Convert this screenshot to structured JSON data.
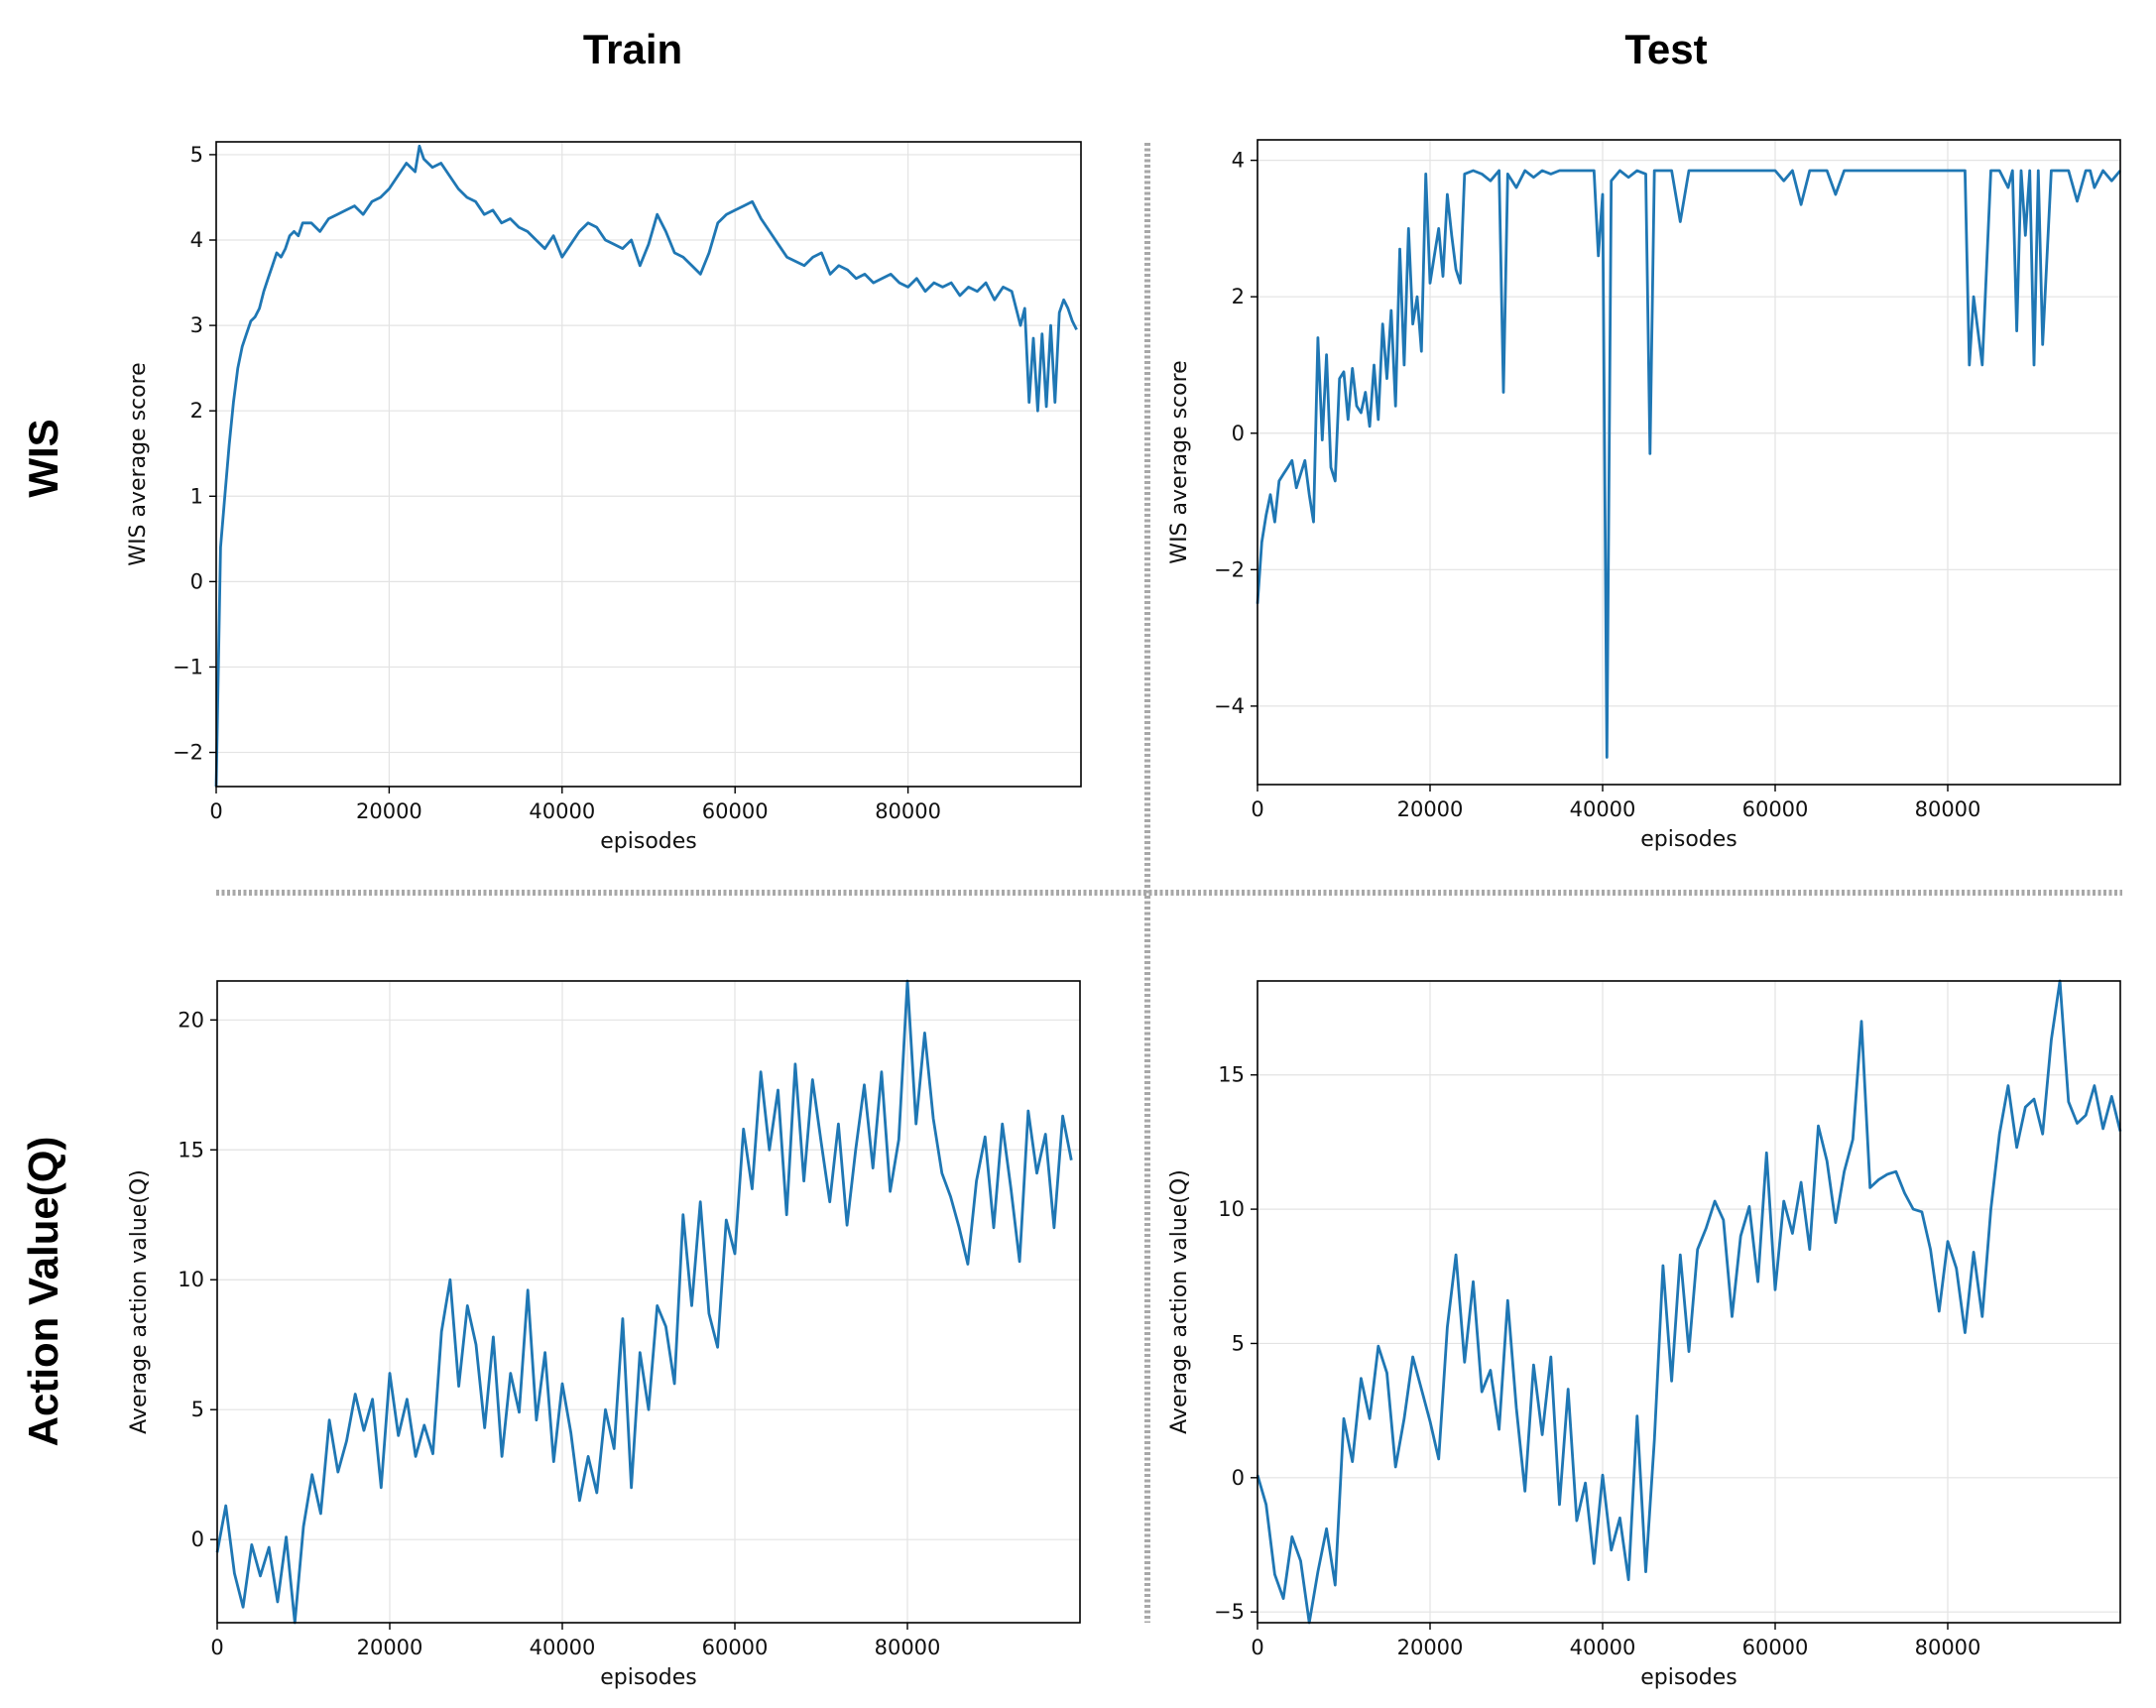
{
  "figure": {
    "column_titles": [
      "Train",
      "Test"
    ],
    "row_titles": [
      "WIS",
      "Action Value(Q)"
    ],
    "line_color": "#1f77b4",
    "divider_color": "#a8a8a8"
  },
  "chart_data": [
    {
      "type": "line",
      "id": "wis-train",
      "title": "",
      "xlabel": "episodes",
      "ylabel": "WIS average score",
      "xlim": [
        0,
        100000
      ],
      "ylim": [
        -2.4,
        5.15
      ],
      "xticks": [
        0,
        20000,
        40000,
        60000,
        80000
      ],
      "yticks": [
        -2,
        -1,
        0,
        1,
        2,
        3,
        4,
        5
      ],
      "grid": true,
      "series": [
        {
          "name": "WIS train",
          "x": [
            0,
            500,
            1000,
            1500,
            2000,
            2500,
            3000,
            3500,
            4000,
            4500,
            5000,
            5500,
            6000,
            6500,
            7000,
            7500,
            8000,
            8500,
            9000,
            9500,
            10000,
            11000,
            12000,
            13000,
            14000,
            15000,
            16000,
            17000,
            18000,
            19000,
            20000,
            21000,
            22000,
            23000,
            23500,
            24000,
            25000,
            26000,
            27000,
            28000,
            29000,
            30000,
            31000,
            32000,
            33000,
            34000,
            35000,
            36000,
            37000,
            38000,
            39000,
            40000,
            41000,
            42000,
            43000,
            44000,
            45000,
            46000,
            47000,
            48000,
            49000,
            50000,
            51000,
            52000,
            53000,
            54000,
            55000,
            56000,
            57000,
            58000,
            59000,
            60000,
            61000,
            62000,
            63000,
            64000,
            65000,
            66000,
            67000,
            68000,
            69000,
            70000,
            71000,
            72000,
            73000,
            74000,
            75000,
            76000,
            77000,
            78000,
            79000,
            80000,
            81000,
            82000,
            83000,
            84000,
            85000,
            86000,
            87000,
            88000,
            89000,
            90000,
            91000,
            92000,
            93000,
            93500,
            94000,
            94500,
            95000,
            95500,
            96000,
            96500,
            97000,
            97500,
            98000,
            98500,
            99000,
            99500
          ],
          "y": [
            -2.4,
            0.4,
            1.0,
            1.6,
            2.1,
            2.5,
            2.75,
            2.9,
            3.05,
            3.1,
            3.2,
            3.4,
            3.55,
            3.7,
            3.85,
            3.8,
            3.9,
            4.05,
            4.1,
            4.05,
            4.2,
            4.2,
            4.1,
            4.25,
            4.3,
            4.35,
            4.4,
            4.3,
            4.45,
            4.5,
            4.6,
            4.75,
            4.9,
            4.8,
            5.1,
            4.95,
            4.85,
            4.9,
            4.75,
            4.6,
            4.5,
            4.45,
            4.3,
            4.35,
            4.2,
            4.25,
            4.15,
            4.1,
            4.0,
            3.9,
            4.05,
            3.8,
            3.95,
            4.1,
            4.2,
            4.15,
            4.0,
            3.95,
            3.9,
            4.0,
            3.7,
            3.95,
            4.3,
            4.1,
            3.85,
            3.8,
            3.7,
            3.6,
            3.85,
            4.2,
            4.3,
            4.35,
            4.4,
            4.45,
            4.25,
            4.1,
            3.95,
            3.8,
            3.75,
            3.7,
            3.8,
            3.85,
            3.6,
            3.7,
            3.65,
            3.55,
            3.6,
            3.5,
            3.55,
            3.6,
            3.5,
            3.45,
            3.55,
            3.4,
            3.5,
            3.45,
            3.5,
            3.35,
            3.45,
            3.4,
            3.5,
            3.3,
            3.45,
            3.4,
            3.0,
            3.2,
            2.1,
            2.85,
            2.0,
            2.9,
            2.05,
            3.0,
            2.1,
            3.15,
            3.3,
            3.2,
            3.05,
            2.95
          ]
        }
      ]
    },
    {
      "type": "line",
      "id": "wis-test",
      "title": "",
      "xlabel": "episodes",
      "ylabel": "WIS average score",
      "xlim": [
        0,
        100000
      ],
      "ylim": [
        -5.15,
        4.3
      ],
      "xticks": [
        0,
        20000,
        40000,
        60000,
        80000
      ],
      "yticks": [
        -4,
        -2,
        0,
        2,
        4
      ],
      "grid": true,
      "series": [
        {
          "name": "WIS test",
          "x": [
            0,
            500,
            1000,
            1500,
            2000,
            2500,
            3000,
            3500,
            4000,
            4500,
            5000,
            5500,
            6000,
            6500,
            7000,
            7500,
            8000,
            8500,
            9000,
            9500,
            10000,
            10500,
            11000,
            11500,
            12000,
            12500,
            13000,
            13500,
            14000,
            14500,
            15000,
            15500,
            16000,
            16500,
            17000,
            17500,
            18000,
            18500,
            19000,
            19500,
            20000,
            20500,
            21000,
            21500,
            22000,
            22500,
            23000,
            23500,
            24000,
            25000,
            26000,
            27000,
            28000,
            28500,
            29000,
            30000,
            31000,
            32000,
            33000,
            34000,
            35000,
            36000,
            37000,
            38000,
            39000,
            39500,
            40000,
            40500,
            41000,
            42000,
            43000,
            44000,
            45000,
            45500,
            46000,
            47000,
            48000,
            49000,
            50000,
            52000,
            54000,
            56000,
            58000,
            60000,
            61000,
            62000,
            63000,
            64000,
            65000,
            66000,
            67000,
            68000,
            70000,
            72000,
            74000,
            76000,
            78000,
            80000,
            81000,
            82000,
            82500,
            83000,
            84000,
            85000,
            86000,
            87000,
            87500,
            88000,
            88500,
            89000,
            89500,
            90000,
            90500,
            91000,
            92000,
            93000,
            94000,
            95000,
            96000,
            96500,
            97000,
            98000,
            99000,
            100000
          ],
          "y": [
            -2.5,
            -1.6,
            -1.2,
            -0.9,
            -1.3,
            -0.7,
            -0.6,
            -0.5,
            -0.4,
            -0.8,
            -0.6,
            -0.4,
            -0.9,
            -1.3,
            1.4,
            -0.1,
            1.15,
            -0.5,
            -0.7,
            0.8,
            0.9,
            0.2,
            0.95,
            0.4,
            0.3,
            0.6,
            0.1,
            1.0,
            0.2,
            1.6,
            0.8,
            1.8,
            0.4,
            2.7,
            1.0,
            3.0,
            1.6,
            2.0,
            1.2,
            3.8,
            2.2,
            2.6,
            3.0,
            2.3,
            3.5,
            2.9,
            2.4,
            2.2,
            3.8,
            3.85,
            3.8,
            3.7,
            3.85,
            0.6,
            3.8,
            3.6,
            3.85,
            3.75,
            3.85,
            3.8,
            3.85,
            3.85,
            3.85,
            3.85,
            3.85,
            2.6,
            3.5,
            -4.75,
            3.7,
            3.85,
            3.75,
            3.85,
            3.8,
            -0.3,
            3.85,
            3.85,
            3.85,
            3.1,
            3.85,
            3.85,
            3.85,
            3.85,
            3.85,
            3.85,
            3.7,
            3.85,
            3.35,
            3.85,
            3.85,
            3.85,
            3.5,
            3.85,
            3.85,
            3.85,
            3.85,
            3.85,
            3.85,
            3.85,
            3.85,
            3.85,
            1.0,
            2.0,
            1.0,
            3.85,
            3.85,
            3.6,
            3.85,
            1.5,
            3.85,
            2.9,
            3.85,
            1.0,
            3.85,
            1.3,
            3.85,
            3.85,
            3.85,
            3.4,
            3.85,
            3.85,
            3.6,
            3.85,
            3.7,
            3.85
          ]
        }
      ]
    },
    {
      "type": "line",
      "id": "q-train",
      "title": "",
      "xlabel": "episodes",
      "ylabel": "Average action value(Q)",
      "xlim": [
        0,
        100000
      ],
      "ylim": [
        -3.2,
        21.5
      ],
      "xticks": [
        0,
        20000,
        40000,
        60000,
        80000
      ],
      "yticks": [
        0,
        5,
        10,
        15,
        20
      ],
      "grid": true,
      "series": [
        {
          "name": "Q train",
          "x": [
            0,
            1000,
            2000,
            3000,
            4000,
            5000,
            6000,
            7000,
            8000,
            9000,
            10000,
            11000,
            12000,
            13000,
            14000,
            15000,
            16000,
            17000,
            18000,
            19000,
            20000,
            21000,
            22000,
            23000,
            24000,
            25000,
            26000,
            27000,
            28000,
            29000,
            30000,
            31000,
            32000,
            33000,
            34000,
            35000,
            36000,
            37000,
            38000,
            39000,
            40000,
            41000,
            42000,
            43000,
            44000,
            45000,
            46000,
            47000,
            48000,
            49000,
            50000,
            51000,
            52000,
            53000,
            54000,
            55000,
            56000,
            57000,
            58000,
            59000,
            60000,
            61000,
            62000,
            63000,
            64000,
            65000,
            66000,
            67000,
            68000,
            69000,
            70000,
            71000,
            72000,
            73000,
            74000,
            75000,
            76000,
            77000,
            78000,
            79000,
            80000,
            81000,
            82000,
            83000,
            84000,
            85000,
            86000,
            87000,
            88000,
            89000,
            90000,
            91000,
            92000,
            93000,
            94000,
            95000,
            96000,
            97000,
            98000,
            99000
          ],
          "y": [
            -0.5,
            1.3,
            -1.3,
            -2.6,
            -0.2,
            -1.4,
            -0.3,
            -2.4,
            0.1,
            -3.2,
            0.5,
            2.5,
            1.0,
            4.6,
            2.6,
            3.8,
            5.6,
            4.2,
            5.4,
            2.0,
            6.4,
            4.0,
            5.4,
            3.2,
            4.4,
            3.3,
            8.0,
            10.0,
            5.9,
            9.0,
            7.5,
            4.3,
            7.8,
            3.2,
            6.4,
            4.9,
            9.6,
            4.6,
            7.2,
            3.0,
            6.0,
            4.1,
            1.5,
            3.2,
            1.8,
            5.0,
            3.5,
            8.5,
            2.0,
            7.2,
            5.0,
            9.0,
            8.2,
            6.0,
            12.5,
            9.0,
            13.0,
            8.7,
            7.4,
            12.3,
            11.0,
            15.8,
            13.5,
            18.0,
            15.0,
            17.3,
            12.5,
            18.3,
            13.8,
            17.7,
            15.3,
            13.0,
            16.0,
            12.1,
            15.0,
            17.5,
            14.3,
            18.0,
            13.4,
            15.4,
            21.5,
            16.0,
            19.5,
            16.2,
            14.1,
            13.2,
            12.0,
            10.6,
            13.8,
            15.5,
            12.0,
            16.0,
            13.5,
            10.7,
            16.5,
            14.1,
            15.6,
            12.0,
            16.3,
            14.6
          ]
        }
      ]
    },
    {
      "type": "line",
      "id": "q-test",
      "title": "",
      "xlabel": "episodes",
      "ylabel": "Average action value(Q)",
      "xlim": [
        0,
        100000
      ],
      "ylim": [
        -5.4,
        18.5
      ],
      "xticks": [
        0,
        20000,
        40000,
        60000,
        80000
      ],
      "yticks": [
        -5,
        0,
        5,
        10,
        15
      ],
      "grid": true,
      "series": [
        {
          "name": "Q test",
          "x": [
            0,
            1000,
            2000,
            3000,
            4000,
            5000,
            6000,
            7000,
            8000,
            9000,
            10000,
            11000,
            12000,
            13000,
            14000,
            15000,
            16000,
            17000,
            18000,
            19000,
            20000,
            21000,
            22000,
            23000,
            24000,
            25000,
            26000,
            27000,
            28000,
            29000,
            30000,
            31000,
            32000,
            33000,
            34000,
            35000,
            36000,
            37000,
            38000,
            39000,
            40000,
            41000,
            42000,
            43000,
            44000,
            45000,
            46000,
            47000,
            48000,
            49000,
            50000,
            51000,
            52000,
            53000,
            54000,
            55000,
            56000,
            57000,
            58000,
            59000,
            60000,
            61000,
            62000,
            63000,
            64000,
            65000,
            66000,
            67000,
            68000,
            69000,
            70000,
            71000,
            72000,
            73000,
            74000,
            75000,
            76000,
            77000,
            78000,
            79000,
            80000,
            81000,
            82000,
            83000,
            84000,
            85000,
            86000,
            87000,
            88000,
            89000,
            90000,
            91000,
            92000,
            93000,
            94000,
            95000,
            96000,
            97000,
            98000,
            99000,
            100000
          ],
          "y": [
            0.1,
            -1.0,
            -3.6,
            -4.5,
            -2.2,
            -3.1,
            -5.4,
            -3.5,
            -1.9,
            -4.0,
            2.2,
            0.6,
            3.7,
            2.2,
            4.9,
            3.9,
            0.4,
            2.2,
            4.5,
            3.3,
            2.1,
            0.7,
            5.6,
            8.3,
            4.3,
            7.3,
            3.2,
            4.0,
            1.8,
            6.6,
            2.6,
            -0.5,
            4.2,
            1.6,
            4.5,
            -1.0,
            3.3,
            -1.6,
            -0.2,
            -3.2,
            0.1,
            -2.7,
            -1.5,
            -3.8,
            2.3,
            -3.5,
            1.4,
            7.9,
            3.6,
            8.3,
            4.7,
            8.5,
            9.3,
            10.3,
            9.6,
            6.0,
            9.0,
            10.1,
            7.3,
            12.1,
            7.0,
            10.3,
            9.1,
            11.0,
            8.5,
            13.1,
            11.8,
            9.5,
            11.4,
            12.6,
            17.0,
            10.8,
            11.1,
            11.3,
            11.4,
            10.6,
            10.0,
            9.9,
            8.5,
            6.2,
            8.8,
            7.8,
            5.4,
            8.4,
            6.0,
            10.0,
            12.8,
            14.6,
            12.3,
            13.8,
            14.1,
            12.8,
            16.3,
            18.5,
            14.0,
            13.2,
            13.5,
            14.6,
            13.0,
            14.2,
            12.9
          ]
        }
      ]
    }
  ]
}
